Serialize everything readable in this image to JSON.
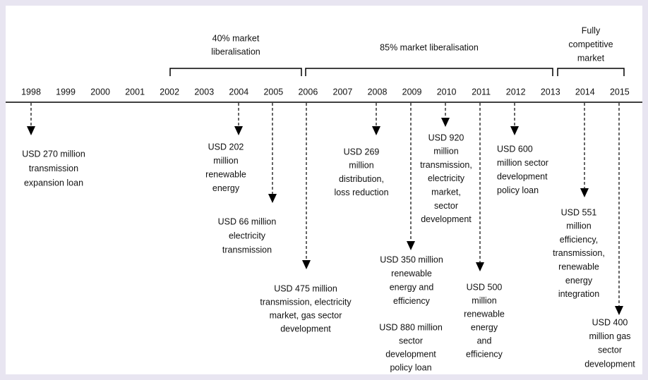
{
  "timeline": {
    "years": [
      "1998",
      "1999",
      "2000",
      "2001",
      "2002",
      "2003",
      "2004",
      "2005",
      "2006",
      "2007",
      "2008",
      "2009",
      "2010",
      "2011",
      "2012",
      "2013",
      "2014",
      "2015"
    ],
    "phases": [
      {
        "lines": [
          "40% market",
          "liberalisation"
        ]
      },
      {
        "lines": [
          "85% market liberalisation"
        ]
      },
      {
        "lines": [
          "Fully",
          "competitive",
          "market"
        ]
      }
    ],
    "loans": [
      {
        "lines": [
          "USD 270 million",
          "transmission",
          "expansion loan"
        ]
      },
      {
        "lines": [
          "USD 202",
          "million",
          "renewable",
          "energy"
        ]
      },
      {
        "lines": [
          "USD 66 million",
          "electricity",
          "transmission"
        ]
      },
      {
        "lines": [
          "USD 475 million",
          "transmission, electricity",
          "market, gas sector",
          "development"
        ]
      },
      {
        "lines": [
          "USD 269",
          "million",
          "distribution,",
          "loss reduction"
        ]
      },
      {
        "lines": [
          "USD 350 million",
          "renewable",
          "energy and",
          "efficiency"
        ]
      },
      {
        "lines": [
          "USD 880 million",
          "sector",
          "development",
          "policy loan"
        ]
      },
      {
        "lines": [
          "USD 920",
          "million",
          "transmission,",
          "electricity",
          "market,",
          "sector",
          "development"
        ]
      },
      {
        "lines": [
          "USD 500",
          "million",
          "renewable",
          "energy",
          "and",
          "efficiency"
        ]
      },
      {
        "lines": [
          "USD 600",
          "million sector",
          "development",
          "policy loan"
        ]
      },
      {
        "lines": [
          "USD 551",
          "million",
          "efficiency,",
          "transmission,",
          "renewable",
          "energy",
          "integration"
        ]
      },
      {
        "lines": [
          "USD 400",
          "million gas",
          "sector",
          "development"
        ]
      }
    ]
  }
}
